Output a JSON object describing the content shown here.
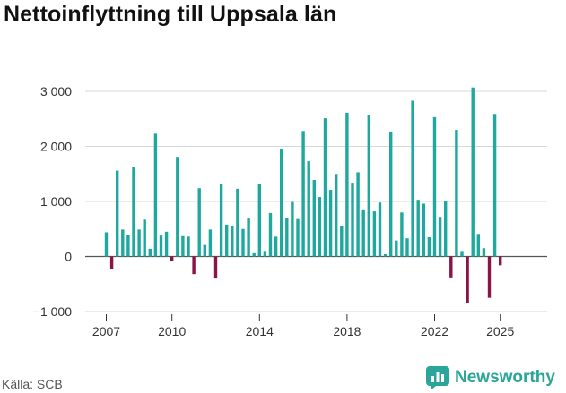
{
  "chart_data": {
    "type": "bar",
    "title": "Nettoinflyttning till Uppsala län",
    "source": "Källa: SCB",
    "brand": "Newsworthy",
    "xlabel": "",
    "ylabel": "",
    "ylim": [
      -1000,
      3000
    ],
    "yticks": [
      {
        "value": 3000,
        "label": "3 000"
      },
      {
        "value": 2000,
        "label": "2 000"
      },
      {
        "value": 1000,
        "label": "1 000"
      },
      {
        "value": 0,
        "label": "0"
      },
      {
        "value": -1000,
        "label": "−1 000"
      }
    ],
    "xticks": [
      {
        "year": 2007,
        "label": "2007"
      },
      {
        "year": 2010,
        "label": "2010"
      },
      {
        "year": 2014,
        "label": "2014"
      },
      {
        "year": 2018,
        "label": "2018"
      },
      {
        "year": 2022,
        "label": "2022"
      },
      {
        "year": 2025,
        "label": "2025"
      }
    ],
    "x_start": 2007.0,
    "period": "quarter",
    "positive_color": "#1fa89e",
    "negative_color": "#8b1346",
    "values": [
      440,
      -220,
      1560,
      490,
      390,
      1620,
      490,
      670,
      140,
      2230,
      380,
      450,
      -90,
      1810,
      370,
      360,
      -320,
      1240,
      210,
      490,
      -400,
      1320,
      580,
      560,
      1230,
      500,
      690,
      60,
      1310,
      100,
      790,
      360,
      1960,
      700,
      990,
      680,
      2280,
      1730,
      1390,
      1080,
      2510,
      1210,
      1500,
      560,
      2610,
      1340,
      1530,
      840,
      2560,
      820,
      980,
      40,
      2270,
      290,
      800,
      330,
      2830,
      1030,
      960,
      350,
      2530,
      720,
      1010,
      -380,
      2300,
      100,
      -850,
      3070,
      410,
      150,
      -750,
      2590,
      -160
    ]
  }
}
